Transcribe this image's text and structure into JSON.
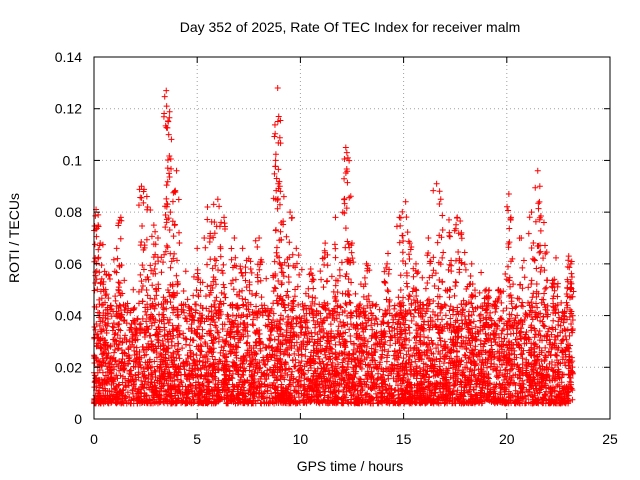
{
  "chart_data": {
    "type": "scatter",
    "title": "Day 352 of 2025, Rate Of TEC Index for receiver malm",
    "xlabel": "GPS time / hours",
    "ylabel": "ROTI / TECUs",
    "xlim": [
      0,
      25
    ],
    "ylim": [
      0,
      0.14
    ],
    "x_ticks": [
      0,
      5,
      10,
      15,
      20,
      25
    ],
    "x_tick_labels": [
      "0",
      "5",
      "10",
      "15",
      "20",
      "25"
    ],
    "y_ticks": [
      0,
      0.02,
      0.04,
      0.06,
      0.08,
      0.1,
      0.12,
      0.14
    ],
    "y_tick_labels": [
      "0",
      "0.02",
      "0.04",
      "0.06",
      "0.08",
      "0.1",
      "0.12",
      "0.14"
    ],
    "grid": true,
    "marker": "plus",
    "marker_color": "#ff0000",
    "series": [
      {
        "name": "ROTI",
        "x_range": [
          0,
          23.2
        ],
        "baseline_low": 0.006,
        "baseline_high": 0.045,
        "note": "dense cloud of points, estimated distribution",
        "peaks": [
          {
            "x": 0.1,
            "y": 0.081
          },
          {
            "x": 0.2,
            "y": 0.075
          },
          {
            "x": 0.3,
            "y": 0.068
          },
          {
            "x": 0.6,
            "y": 0.056
          },
          {
            "x": 1.1,
            "y": 0.066
          },
          {
            "x": 1.3,
            "y": 0.078
          },
          {
            "x": 2.3,
            "y": 0.09
          },
          {
            "x": 2.4,
            "y": 0.088
          },
          {
            "x": 2.6,
            "y": 0.082
          },
          {
            "x": 2.9,
            "y": 0.075
          },
          {
            "x": 3.1,
            "y": 0.07
          },
          {
            "x": 3.5,
            "y": 0.127
          },
          {
            "x": 3.52,
            "y": 0.121
          },
          {
            "x": 3.6,
            "y": 0.115
          },
          {
            "x": 3.62,
            "y": 0.11
          },
          {
            "x": 3.7,
            "y": 0.08
          },
          {
            "x": 4.0,
            "y": 0.096
          },
          {
            "x": 3.9,
            "y": 0.088
          },
          {
            "x": 5.0,
            "y": 0.066
          },
          {
            "x": 5.5,
            "y": 0.082
          },
          {
            "x": 5.8,
            "y": 0.083
          },
          {
            "x": 6.0,
            "y": 0.085
          },
          {
            "x": 6.3,
            "y": 0.078
          },
          {
            "x": 6.8,
            "y": 0.07
          },
          {
            "x": 7.2,
            "y": 0.066
          },
          {
            "x": 7.5,
            "y": 0.062
          },
          {
            "x": 8.0,
            "y": 0.07
          },
          {
            "x": 8.9,
            "y": 0.128
          },
          {
            "x": 8.95,
            "y": 0.117
          },
          {
            "x": 8.8,
            "y": 0.1
          },
          {
            "x": 8.85,
            "y": 0.093
          },
          {
            "x": 9.0,
            "y": 0.09
          },
          {
            "x": 9.2,
            "y": 0.086
          },
          {
            "x": 9.5,
            "y": 0.08
          },
          {
            "x": 9.8,
            "y": 0.066
          },
          {
            "x": 10.5,
            "y": 0.058
          },
          {
            "x": 11.2,
            "y": 0.068
          },
          {
            "x": 11.7,
            "y": 0.078
          },
          {
            "x": 12.2,
            "y": 0.105
          },
          {
            "x": 12.25,
            "y": 0.103
          },
          {
            "x": 12.3,
            "y": 0.101
          },
          {
            "x": 12.5,
            "y": 0.068
          },
          {
            "x": 13.2,
            "y": 0.06
          },
          {
            "x": 14.2,
            "y": 0.06
          },
          {
            "x": 14.8,
            "y": 0.078
          },
          {
            "x": 15.1,
            "y": 0.084
          },
          {
            "x": 15.3,
            "y": 0.068
          },
          {
            "x": 15.6,
            "y": 0.06
          },
          {
            "x": 16.2,
            "y": 0.07
          },
          {
            "x": 16.6,
            "y": 0.091
          },
          {
            "x": 16.8,
            "y": 0.085
          },
          {
            "x": 17.2,
            "y": 0.077
          },
          {
            "x": 17.6,
            "y": 0.078
          },
          {
            "x": 17.8,
            "y": 0.072
          },
          {
            "x": 18.3,
            "y": 0.06
          },
          {
            "x": 19.0,
            "y": 0.05
          },
          {
            "x": 19.6,
            "y": 0.05
          },
          {
            "x": 20.1,
            "y": 0.087
          },
          {
            "x": 20.2,
            "y": 0.078
          },
          {
            "x": 20.7,
            "y": 0.07
          },
          {
            "x": 21.2,
            "y": 0.08
          },
          {
            "x": 21.5,
            "y": 0.096
          },
          {
            "x": 21.6,
            "y": 0.09
          },
          {
            "x": 21.8,
            "y": 0.076
          },
          {
            "x": 22.3,
            "y": 0.054
          },
          {
            "x": 23.0,
            "y": 0.063
          },
          {
            "x": 23.1,
            "y": 0.06
          }
        ]
      }
    ]
  }
}
